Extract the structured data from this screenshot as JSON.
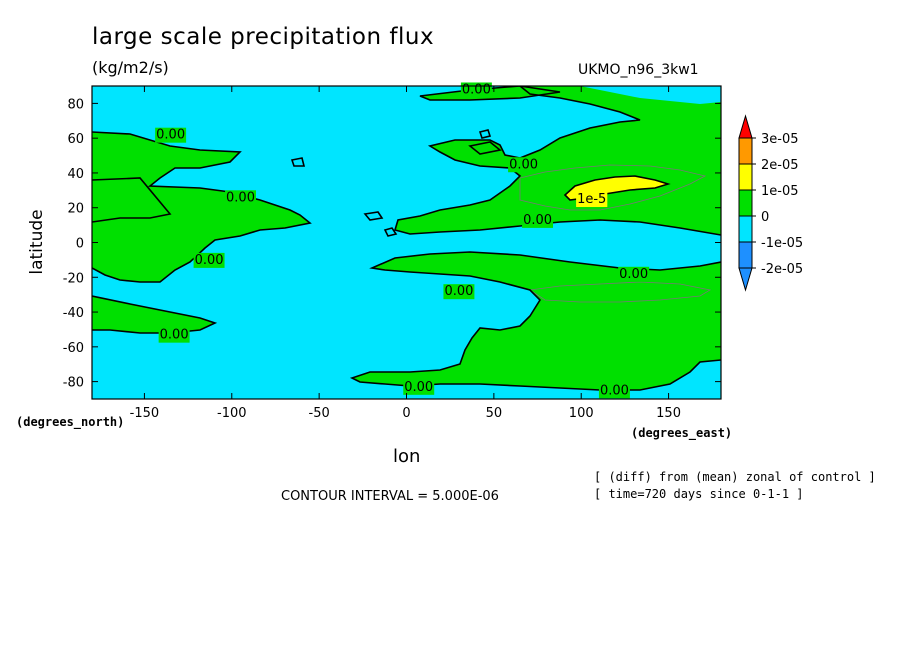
{
  "colors": {
    "neg2e-05": "#1e90ff",
    "neg1e-05": "#00e5ff",
    "zero": "#00e000",
    "pos1e-05": "#ffff00",
    "pos2e-05": "#ff9900",
    "pos3e-05": "#ff0000"
  },
  "chart_data": {
    "type": "heatmap",
    "title": "large scale precipitation flux",
    "units": "(kg/m2/s)",
    "run_label": "UKMO_n96_3kw1",
    "xlabel": "lon",
    "ylabel": "latitude",
    "x_unit": "(degrees_east)",
    "y_unit": "(degrees_north)",
    "xlim": [
      -180,
      180
    ],
    "ylim": [
      -90,
      90
    ],
    "x_ticks": [
      -150,
      -100,
      -50,
      0,
      50,
      100,
      150
    ],
    "y_ticks": [
      80,
      60,
      40,
      20,
      0,
      -20,
      -40,
      -60,
      -80
    ],
    "x_tick_labels": [
      "-150",
      "-100",
      "-50",
      "0",
      "50",
      "100",
      "150"
    ],
    "y_tick_labels": [
      "80",
      "60",
      "40",
      "20",
      "0",
      "-20",
      "-40",
      "-60",
      "-80"
    ],
    "colorbar_labels": [
      "3e-05",
      "2e-05",
      "1e-05",
      "0",
      "-1e-05",
      "-2e-05"
    ],
    "contour_interval_text": "CONTOUR INTERVAL = 5.000E-06",
    "contour_labels": [
      "0.00",
      "1e-5"
    ],
    "notes": [
      "[ (diff) from (mean) zonal of control ]",
      "[ time=720 days since 0-1-1 ]"
    ],
    "grid": false,
    "legend_position": "right"
  }
}
